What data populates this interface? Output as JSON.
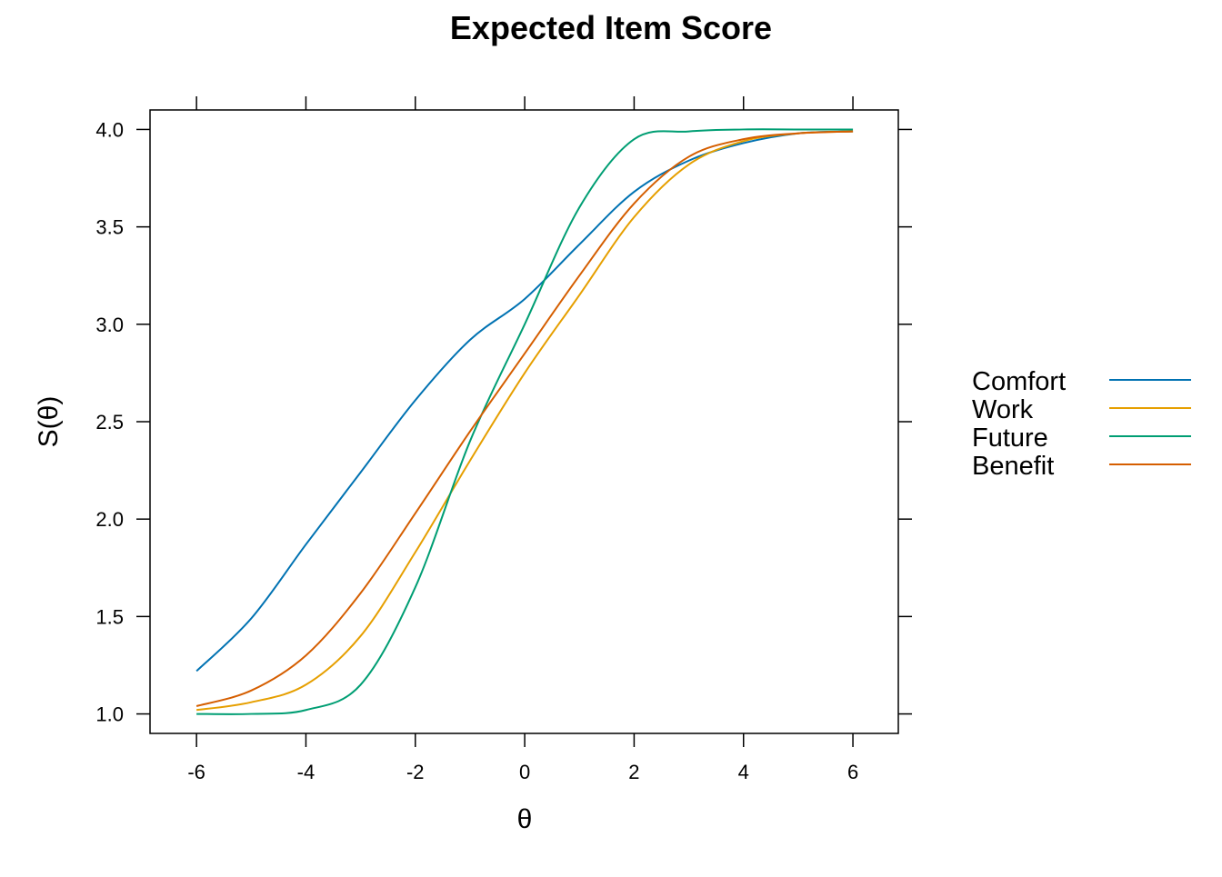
{
  "chart_data": {
    "type": "line",
    "title": "Expected Item Score",
    "xlabel": "θ",
    "ylabel": "S(θ)",
    "xlim": [
      -6.85,
      6.83
    ],
    "ylim": [
      0.9,
      4.1
    ],
    "xticks": [
      -6,
      -4,
      -2,
      0,
      2,
      4,
      6
    ],
    "xtick_labels": [
      "-6",
      "-4",
      "-2",
      "0",
      "2",
      "4",
      "6"
    ],
    "yticks": [
      1.0,
      1.5,
      2.0,
      2.5,
      3.0,
      3.5,
      4.0
    ],
    "ytick_labels": [
      "1.0",
      "1.5",
      "2.0",
      "2.5",
      "3.0",
      "3.5",
      "4.0"
    ],
    "grid": false,
    "legend_position": "right",
    "x": [
      -6,
      -5,
      -4,
      -3,
      -2,
      -1,
      0,
      1,
      2,
      3,
      4,
      5,
      6
    ],
    "series": [
      {
        "name": "Comfort",
        "color": "#0072B2",
        "values": [
          1.22,
          1.49,
          1.87,
          2.24,
          2.61,
          2.92,
          3.13,
          3.41,
          3.68,
          3.84,
          3.93,
          3.98,
          3.99
        ]
      },
      {
        "name": "Work",
        "color": "#E69F00",
        "values": [
          1.02,
          1.06,
          1.15,
          1.4,
          1.83,
          2.3,
          2.75,
          3.15,
          3.55,
          3.82,
          3.94,
          3.98,
          3.99
        ]
      },
      {
        "name": "Future",
        "color": "#009E73",
        "values": [
          1.0,
          1.0,
          1.02,
          1.15,
          1.65,
          2.4,
          3.0,
          3.6,
          3.95,
          3.99,
          4.0,
          4.0,
          4.0
        ]
      },
      {
        "name": "Benefit",
        "color": "#D55E00",
        "values": [
          1.04,
          1.12,
          1.3,
          1.62,
          2.03,
          2.45,
          2.85,
          3.25,
          3.62,
          3.86,
          3.95,
          3.98,
          3.99
        ]
      }
    ]
  }
}
